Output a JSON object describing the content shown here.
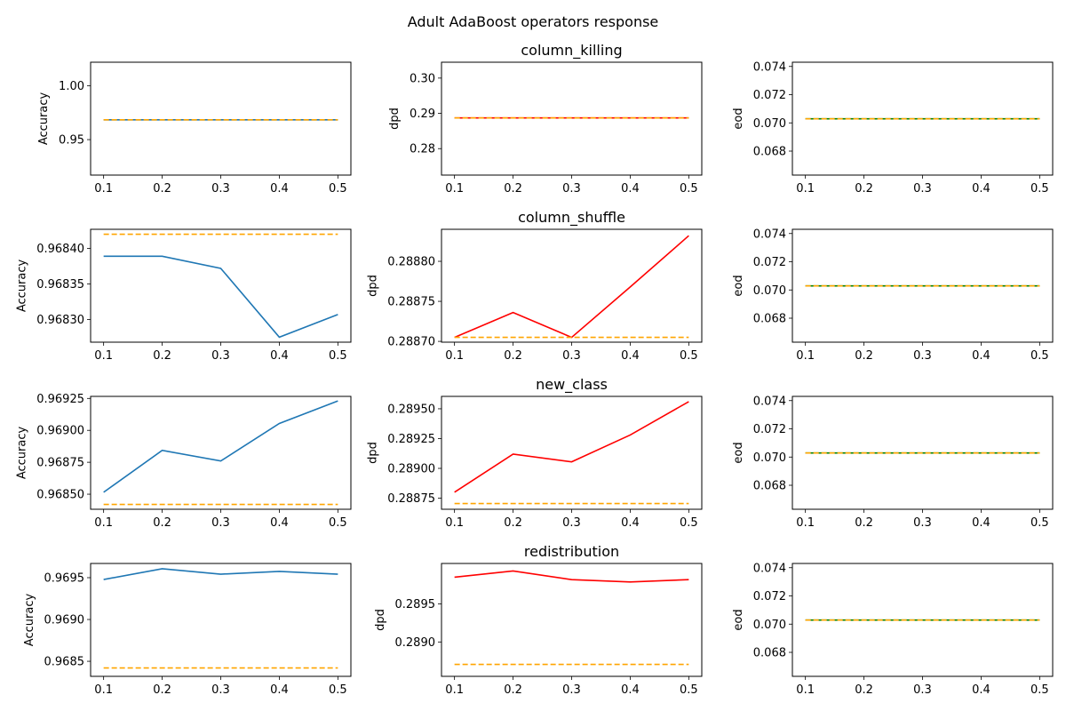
{
  "figure": {
    "suptitle": "Adult AdaBoost operators response"
  },
  "colors": {
    "accuracy_series": "#1f77b4",
    "dpd_series": "#ff0000",
    "eod_series": "#008000",
    "baseline": "#ffa500"
  },
  "chart_data": [
    {
      "type": "line",
      "title": "",
      "ylabel": "Accuracy",
      "x": [
        0.1,
        0.2,
        0.3,
        0.4,
        0.5
      ],
      "xticks": [
        "0.1",
        "0.2",
        "0.3",
        "0.4",
        "0.5"
      ],
      "ylim": [
        0.917,
        1.022
      ],
      "yticks": [
        0.95,
        1.0
      ],
      "yticklabels": [
        "0.95",
        "1.00"
      ],
      "series": [
        {
          "values": [
            0.96842,
            0.96842,
            0.96842,
            0.96842,
            0.96842
          ],
          "style": "solid",
          "color": "#1f77b4"
        },
        {
          "values": [
            0.96842,
            0.96842,
            0.96842,
            0.96842,
            0.96842
          ],
          "style": "dashed",
          "color": "#ffa500"
        }
      ]
    },
    {
      "type": "line",
      "title": "column_killing",
      "ylabel": "dpd",
      "x": [
        0.1,
        0.2,
        0.3,
        0.4,
        0.5
      ],
      "xticks": [
        "0.1",
        "0.2",
        "0.3",
        "0.4",
        "0.5"
      ],
      "ylim": [
        0.2725,
        0.3045
      ],
      "yticks": [
        0.28,
        0.29,
        0.3
      ],
      "yticklabels": [
        "0.28",
        "0.29",
        "0.30"
      ],
      "series": [
        {
          "values": [
            0.2887,
            0.2887,
            0.2887,
            0.2887,
            0.2887
          ],
          "style": "solid",
          "color": "#ff0000"
        },
        {
          "values": [
            0.2887,
            0.2887,
            0.2887,
            0.2887,
            0.2887
          ],
          "style": "dashed",
          "color": "#ffa500"
        }
      ]
    },
    {
      "type": "line",
      "title": "",
      "ylabel": "eod",
      "x": [
        0.1,
        0.2,
        0.3,
        0.4,
        0.5
      ],
      "xticks": [
        "0.1",
        "0.2",
        "0.3",
        "0.4",
        "0.5"
      ],
      "ylim": [
        0.0663,
        0.0743
      ],
      "yticks": [
        0.068,
        0.07,
        0.072,
        0.074
      ],
      "yticklabels": [
        "0.068",
        "0.070",
        "0.072",
        "0.074"
      ],
      "series": [
        {
          "values": [
            0.07029,
            0.07029,
            0.07029,
            0.07029,
            0.07029
          ],
          "style": "solid",
          "color": "#008000"
        },
        {
          "values": [
            0.07029,
            0.07029,
            0.07029,
            0.07029,
            0.07029
          ],
          "style": "dashed",
          "color": "#ffa500"
        }
      ]
    },
    {
      "type": "line",
      "title": "",
      "ylabel": "Accuracy",
      "x": [
        0.1,
        0.2,
        0.3,
        0.4,
        0.5
      ],
      "xticks": [
        "0.1",
        "0.2",
        "0.3",
        "0.4",
        "0.5"
      ],
      "ylim": [
        0.968268,
        0.968427
      ],
      "yticks": [
        0.9683,
        0.96835,
        0.9684
      ],
      "yticklabels": [
        "0.96830",
        "0.96835",
        "0.96840"
      ],
      "series": [
        {
          "values": [
            0.968389,
            0.968389,
            0.968372,
            0.968275,
            0.968307
          ],
          "style": "solid",
          "color": "#1f77b4"
        },
        {
          "values": [
            0.96842,
            0.96842,
            0.96842,
            0.96842,
            0.96842
          ],
          "style": "dashed",
          "color": "#ffa500"
        }
      ]
    },
    {
      "type": "line",
      "title": "column_shuffle",
      "ylabel": "dpd",
      "x": [
        0.1,
        0.2,
        0.3,
        0.4,
        0.5
      ],
      "xticks": [
        "0.1",
        "0.2",
        "0.3",
        "0.4",
        "0.5"
      ],
      "ylim": [
        0.288699,
        0.28884
      ],
      "yticks": [
        0.2887,
        0.28875,
        0.2888
      ],
      "yticklabels": [
        "0.28870",
        "0.28875",
        "0.28880"
      ],
      "series": [
        {
          "values": [
            0.288705,
            0.288736,
            0.288705,
            0.288768,
            0.288832
          ],
          "style": "solid",
          "color": "#ff0000"
        },
        {
          "values": [
            0.288705,
            0.288705,
            0.288705,
            0.288705,
            0.288705
          ],
          "style": "dashed",
          "color": "#ffa500"
        }
      ]
    },
    {
      "type": "line",
      "title": "",
      "ylabel": "eod",
      "x": [
        0.1,
        0.2,
        0.3,
        0.4,
        0.5
      ],
      "xticks": [
        "0.1",
        "0.2",
        "0.3",
        "0.4",
        "0.5"
      ],
      "ylim": [
        0.0663,
        0.0743
      ],
      "yticks": [
        0.068,
        0.07,
        0.072,
        0.074
      ],
      "yticklabels": [
        "0.068",
        "0.070",
        "0.072",
        "0.074"
      ],
      "series": [
        {
          "values": [
            0.07029,
            0.07029,
            0.07029,
            0.07029,
            0.07029
          ],
          "style": "solid",
          "color": "#008000"
        },
        {
          "values": [
            0.07029,
            0.07029,
            0.07029,
            0.07029,
            0.07029
          ],
          "style": "dashed",
          "color": "#ffa500"
        }
      ]
    },
    {
      "type": "line",
      "title": "",
      "ylabel": "Accuracy",
      "x": [
        0.1,
        0.2,
        0.3,
        0.4,
        0.5
      ],
      "xticks": [
        "0.1",
        "0.2",
        "0.3",
        "0.4",
        "0.5"
      ],
      "ylim": [
        0.968382,
        0.969266
      ],
      "yticks": [
        0.9685,
        0.96875,
        0.969,
        0.96925
      ],
      "yticklabels": [
        "0.96850",
        "0.96875",
        "0.96900",
        "0.96925"
      ],
      "series": [
        {
          "values": [
            0.968515,
            0.968843,
            0.96876,
            0.969054,
            0.96923
          ],
          "style": "solid",
          "color": "#1f77b4"
        },
        {
          "values": [
            0.96842,
            0.96842,
            0.96842,
            0.96842,
            0.96842
          ],
          "style": "dashed",
          "color": "#ffa500"
        }
      ]
    },
    {
      "type": "line",
      "title": "new_class",
      "ylabel": "dpd",
      "x": [
        0.1,
        0.2,
        0.3,
        0.4,
        0.5
      ],
      "xticks": [
        "0.1",
        "0.2",
        "0.3",
        "0.4",
        "0.5"
      ],
      "ylim": [
        0.288657,
        0.289604
      ],
      "yticks": [
        0.28875,
        0.289,
        0.28925,
        0.2895
      ],
      "yticklabels": [
        "0.28875",
        "0.28900",
        "0.28925",
        "0.28950"
      ],
      "series": [
        {
          "values": [
            0.2888,
            0.28912,
            0.289055,
            0.28928,
            0.28956
          ],
          "style": "solid",
          "color": "#ff0000"
        },
        {
          "values": [
            0.288705,
            0.288705,
            0.288705,
            0.288705,
            0.288705
          ],
          "style": "dashed",
          "color": "#ffa500"
        }
      ]
    },
    {
      "type": "line",
      "title": "",
      "ylabel": "eod",
      "x": [
        0.1,
        0.2,
        0.3,
        0.4,
        0.5
      ],
      "xticks": [
        "0.1",
        "0.2",
        "0.3",
        "0.4",
        "0.5"
      ],
      "ylim": [
        0.0663,
        0.0743
      ],
      "yticks": [
        0.068,
        0.07,
        0.072,
        0.074
      ],
      "yticklabels": [
        "0.068",
        "0.070",
        "0.072",
        "0.074"
      ],
      "series": [
        {
          "values": [
            0.07029,
            0.07029,
            0.07029,
            0.07029,
            0.07029
          ],
          "style": "solid",
          "color": "#008000"
        },
        {
          "values": [
            0.07029,
            0.07029,
            0.07029,
            0.07029,
            0.07029
          ],
          "style": "dashed",
          "color": "#ffa500"
        }
      ]
    },
    {
      "type": "line",
      "title": "",
      "ylabel": "Accuracy",
      "x": [
        0.1,
        0.2,
        0.3,
        0.4,
        0.5
      ],
      "xticks": [
        "0.1",
        "0.2",
        "0.3",
        "0.4",
        "0.5"
      ],
      "ylim": [
        0.96832,
        0.96967
      ],
      "yticks": [
        0.9685,
        0.969,
        0.9695
      ],
      "yticklabels": [
        "0.9685",
        "0.9690",
        "0.9695"
      ],
      "series": [
        {
          "values": [
            0.969478,
            0.969607,
            0.969542,
            0.969575,
            0.969542
          ],
          "style": "solid",
          "color": "#1f77b4"
        },
        {
          "values": [
            0.96842,
            0.96842,
            0.96842,
            0.96842,
            0.96842
          ],
          "style": "dashed",
          "color": "#ffa500"
        }
      ]
    },
    {
      "type": "line",
      "title": "redistribution",
      "ylabel": "dpd",
      "x": [
        0.1,
        0.2,
        0.3,
        0.4,
        0.5
      ],
      "xticks": [
        "0.1",
        "0.2",
        "0.3",
        "0.4",
        "0.5"
      ],
      "ylim": [
        0.288548,
        0.290032
      ],
      "yticks": [
        0.289,
        0.2895
      ],
      "yticklabels": [
        "0.2890",
        "0.2895"
      ],
      "series": [
        {
          "values": [
            0.289852,
            0.289933,
            0.28982,
            0.289789,
            0.28982
          ],
          "style": "solid",
          "color": "#ff0000"
        },
        {
          "values": [
            0.288705,
            0.288705,
            0.288705,
            0.288705,
            0.288705
          ],
          "style": "dashed",
          "color": "#ffa500"
        }
      ]
    },
    {
      "type": "line",
      "title": "",
      "ylabel": "eod",
      "x": [
        0.1,
        0.2,
        0.3,
        0.4,
        0.5
      ],
      "xticks": [
        "0.1",
        "0.2",
        "0.3",
        "0.4",
        "0.5"
      ],
      "ylim": [
        0.0663,
        0.0743
      ],
      "yticks": [
        0.068,
        0.07,
        0.072,
        0.074
      ],
      "yticklabels": [
        "0.068",
        "0.070",
        "0.072",
        "0.074"
      ],
      "series": [
        {
          "values": [
            0.07029,
            0.07029,
            0.07029,
            0.07029,
            0.07029
          ],
          "style": "solid",
          "color": "#008000"
        },
        {
          "values": [
            0.07029,
            0.07029,
            0.07029,
            0.07029,
            0.07029
          ],
          "style": "dashed",
          "color": "#ffa500"
        }
      ]
    }
  ]
}
